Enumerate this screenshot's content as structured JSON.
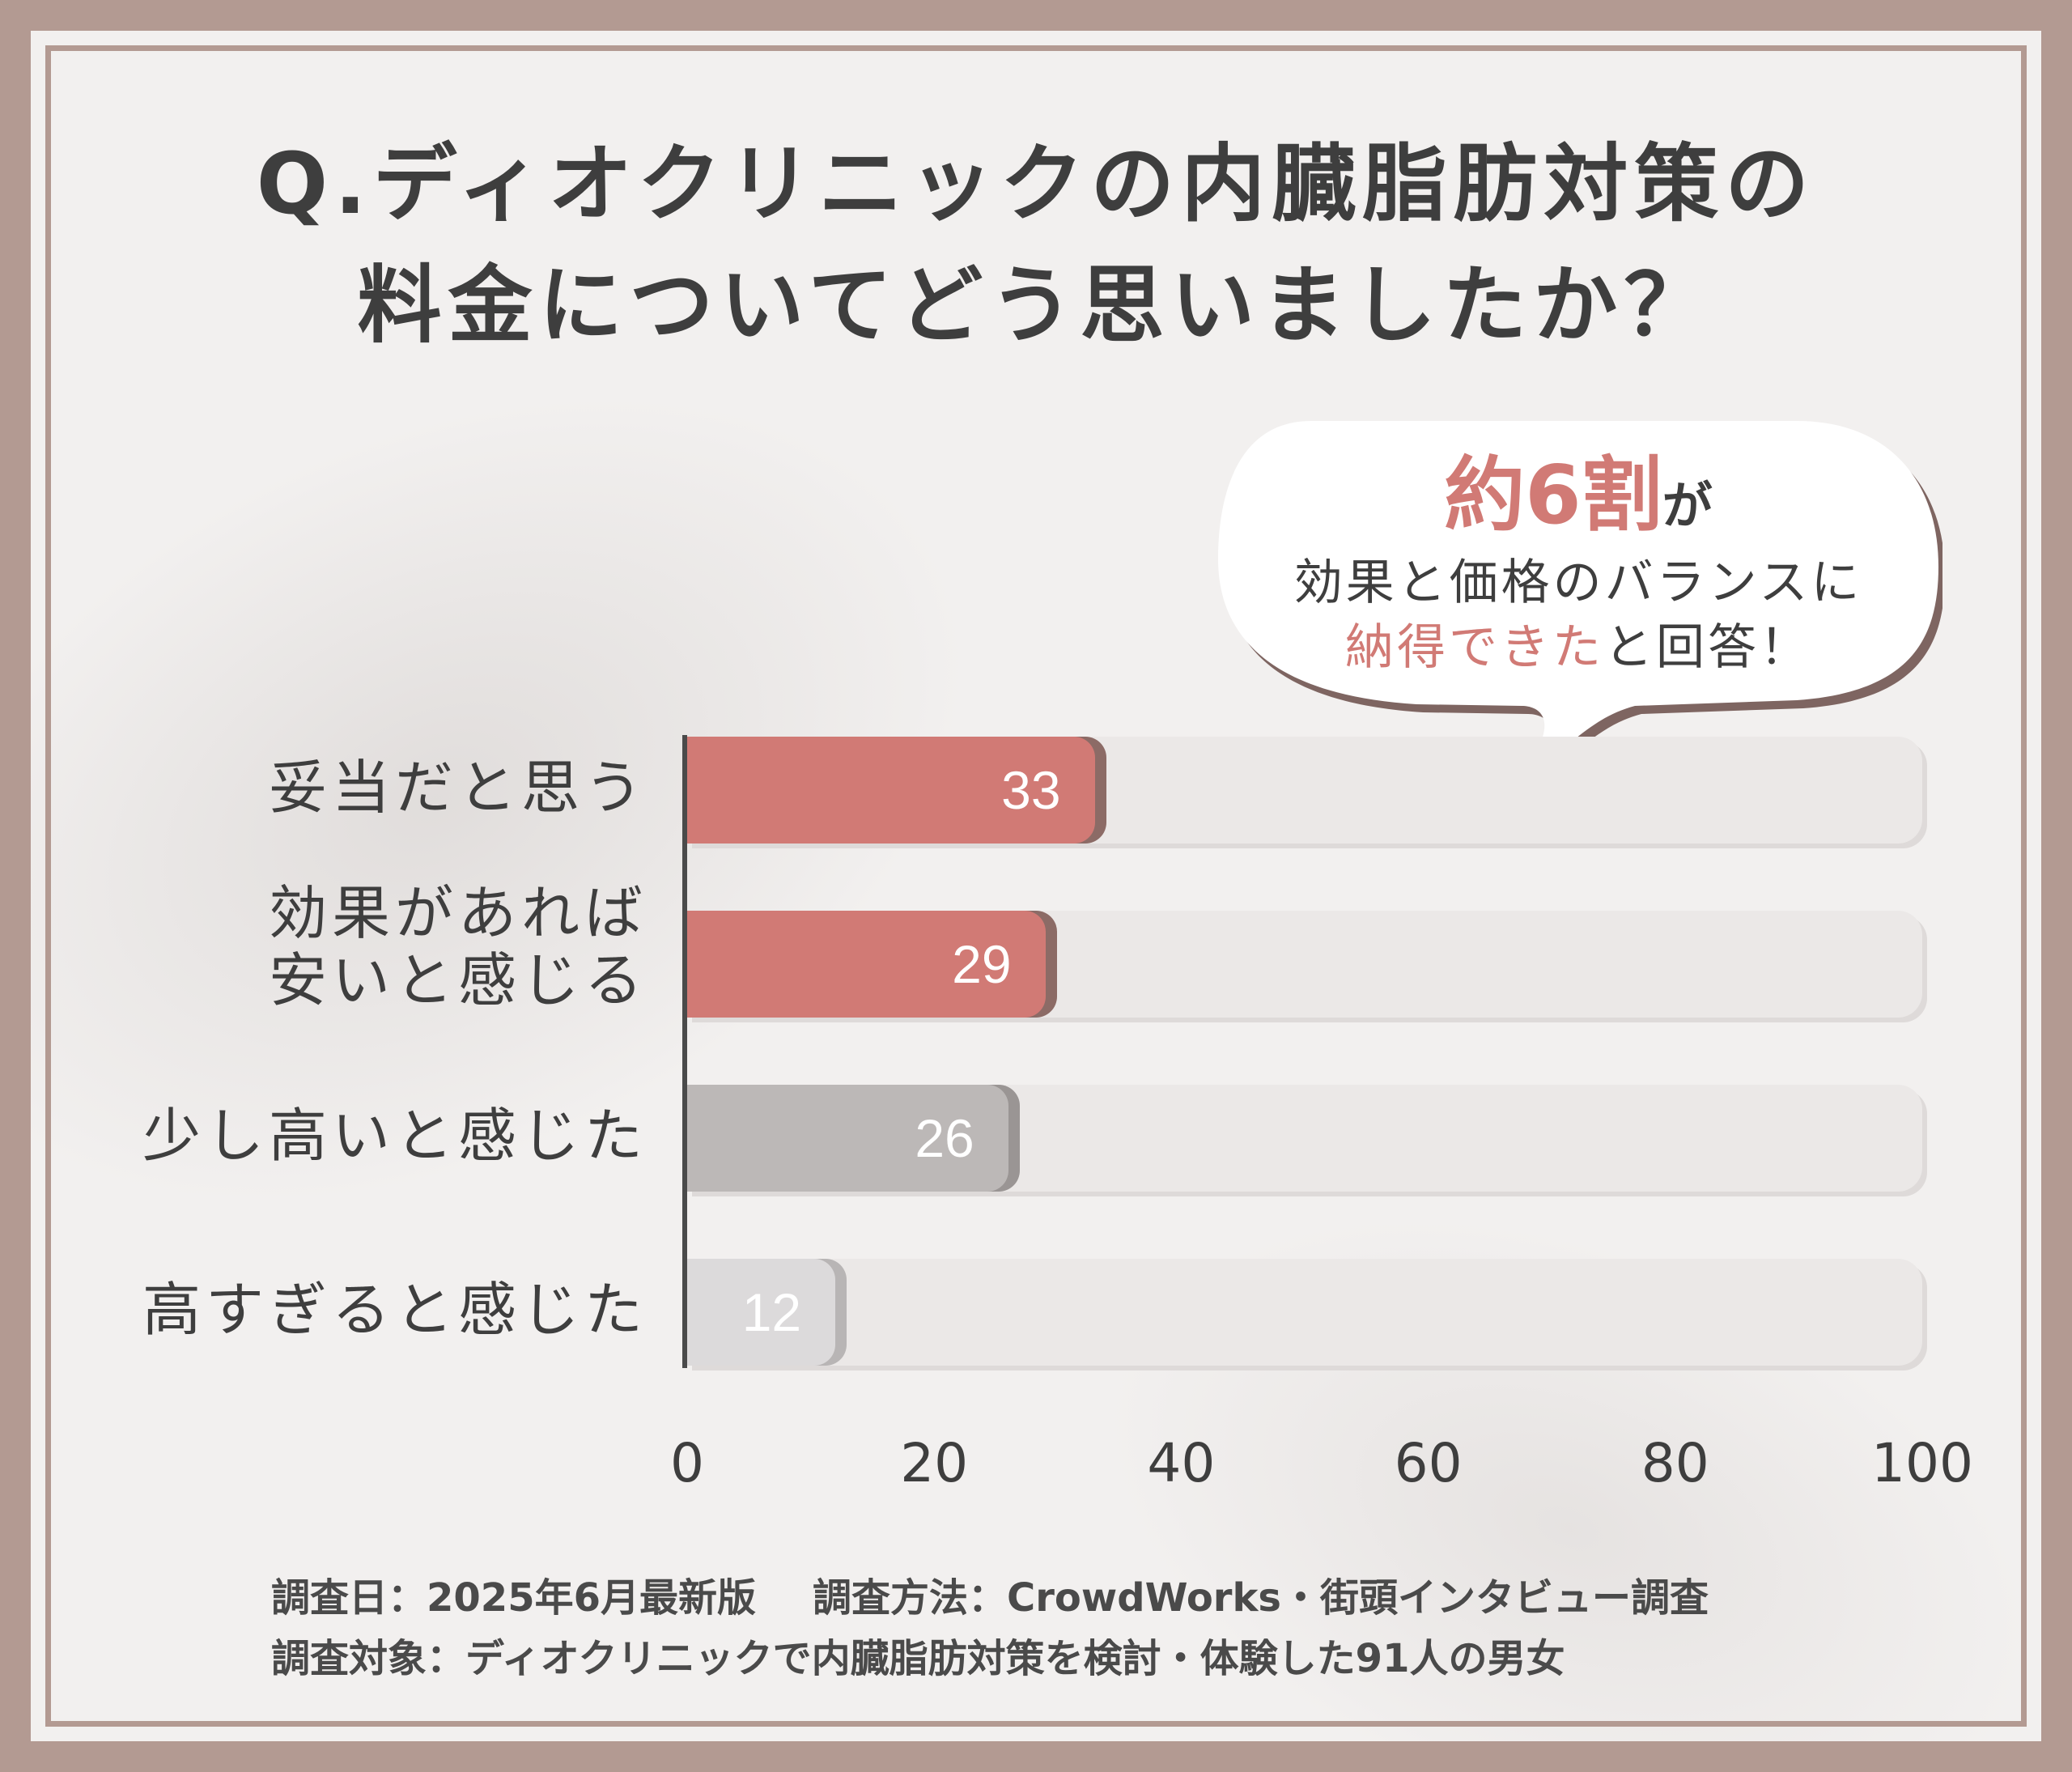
{
  "title": {
    "line1": "Q.ディオクリニックの内臓脂肪対策の",
    "line2": "料金についてどう思いましたか？"
  },
  "callout": {
    "big": "約6割",
    "particle": "が",
    "line2": "効果と価格のバランスに",
    "line3_accent": "納得できた",
    "line3_rest": "と回答！"
  },
  "chart_data": {
    "type": "bar",
    "orientation": "horizontal",
    "categories": [
      "妥当だと思う",
      "効果があれば\n安いと感じる",
      "少し高いと感じた",
      "高すぎると感じた"
    ],
    "values": [
      33,
      29,
      26,
      12
    ],
    "value_labels": [
      "33",
      "29",
      "26",
      "12"
    ],
    "xlim": [
      0,
      100
    ],
    "x_ticks": [
      "0",
      "20",
      "40",
      "60",
      "80",
      "100"
    ],
    "bar_colors": [
      "#d17a75",
      "#d17a75",
      "#bcb8b7",
      "#dcdadb"
    ],
    "bar_shadow_colors": [
      "#8c6b66",
      "#8c6b66",
      "#9a9594",
      "#b8b5b5"
    ],
    "track_color": "#ebe8e7",
    "value_text_color": "#ffffff"
  },
  "footer": {
    "date": "調査日：2025年6月最新版",
    "method": "調査方法：CrowdWorks・街頭インタビュー調査",
    "target": "調査対象：ディオクリニックで内臓脂肪対策を検討・体験した91人の男女"
  }
}
